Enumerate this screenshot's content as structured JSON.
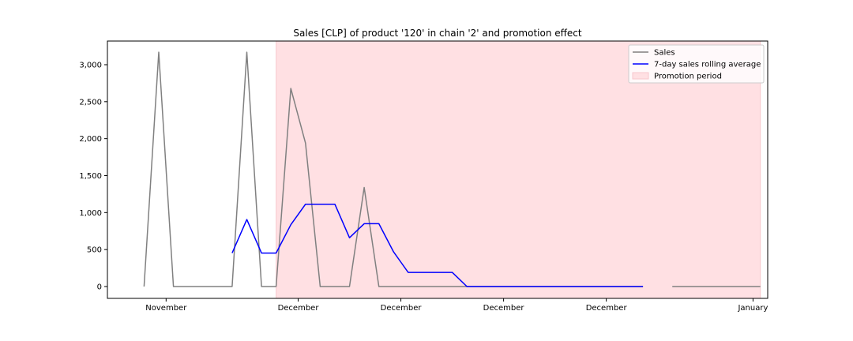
{
  "chart_data": {
    "type": "line",
    "title": "Sales [CLP] of product '120' in chain '2' and promotion effect",
    "xlabel": "",
    "ylabel": "",
    "x_range": [
      -3.5,
      41.5
    ],
    "ylim": [
      -160,
      3320
    ],
    "y_ticks": [
      0,
      500,
      1000,
      1500,
      2000,
      2500,
      3000
    ],
    "y_tick_labels": [
      "0",
      "500",
      "1,000",
      "1,500",
      "2,000",
      "2,500",
      "3,000"
    ],
    "x_ticks": [
      {
        "x": 0.5,
        "label": "November"
      },
      {
        "x": 9.5,
        "label": "December"
      },
      {
        "x": 16.5,
        "label": "December"
      },
      {
        "x": 23.5,
        "label": "December"
      },
      {
        "x": 30.5,
        "label": "December"
      },
      {
        "x": 40.5,
        "label": "January"
      }
    ],
    "grid": false,
    "legend_position": "top-right",
    "promotion_period": {
      "name": "Promotion period",
      "start": 8,
      "end": 41,
      "color": "#ffe0e3",
      "edge_color": "#f7c8cd"
    },
    "series": [
      {
        "name": "Sales",
        "color": "#808080",
        "segments": [
          [
            [
              -1,
              0
            ],
            [
              0,
              3170
            ],
            [
              1,
              0
            ],
            [
              2,
              0
            ],
            [
              3,
              0
            ],
            [
              4,
              0
            ],
            [
              5,
              0
            ],
            [
              6,
              3170
            ],
            [
              7,
              0
            ],
            [
              8,
              0
            ],
            [
              9,
              2680
            ],
            [
              10,
              1940
            ],
            [
              11,
              0
            ],
            [
              12,
              0
            ],
            [
              13,
              0
            ],
            [
              14,
              1340
            ],
            [
              15,
              0
            ],
            [
              16,
              0
            ],
            [
              17,
              0
            ],
            [
              18,
              0
            ],
            [
              19,
              0
            ],
            [
              20,
              0
            ],
            [
              21,
              0
            ],
            [
              22,
              0
            ],
            [
              23,
              0
            ],
            [
              24,
              0
            ],
            [
              25,
              0
            ],
            [
              26,
              0
            ],
            [
              27,
              0
            ],
            [
              28,
              0
            ],
            [
              29,
              0
            ],
            [
              30,
              0
            ],
            [
              31,
              0
            ],
            [
              32,
              0
            ],
            [
              33,
              0
            ]
          ],
          [
            [
              35,
              0
            ],
            [
              36,
              0
            ],
            [
              37,
              0
            ],
            [
              38,
              0
            ],
            [
              39,
              0
            ],
            [
              40,
              0
            ],
            [
              41,
              0
            ]
          ]
        ]
      },
      {
        "name": "7-day sales rolling average",
        "color": "#0000ff",
        "segments": [
          [
            [
              5,
              453
            ],
            [
              6,
              906
            ],
            [
              7,
              453
            ],
            [
              8,
              453
            ],
            [
              9,
              836
            ],
            [
              10,
              1113
            ],
            [
              11,
              1113
            ],
            [
              12,
              1113
            ],
            [
              13,
              660
            ],
            [
              14,
              850
            ],
            [
              15,
              850
            ],
            [
              16,
              469
            ],
            [
              17,
              191
            ],
            [
              18,
              191
            ],
            [
              19,
              191
            ],
            [
              20,
              191
            ],
            [
              21,
              0
            ],
            [
              22,
              0
            ],
            [
              23,
              0
            ],
            [
              24,
              0
            ],
            [
              25,
              0
            ],
            [
              26,
              0
            ],
            [
              27,
              0
            ],
            [
              28,
              0
            ],
            [
              29,
              0
            ],
            [
              30,
              0
            ],
            [
              31,
              0
            ],
            [
              32,
              0
            ],
            [
              33,
              0
            ]
          ]
        ]
      }
    ]
  }
}
